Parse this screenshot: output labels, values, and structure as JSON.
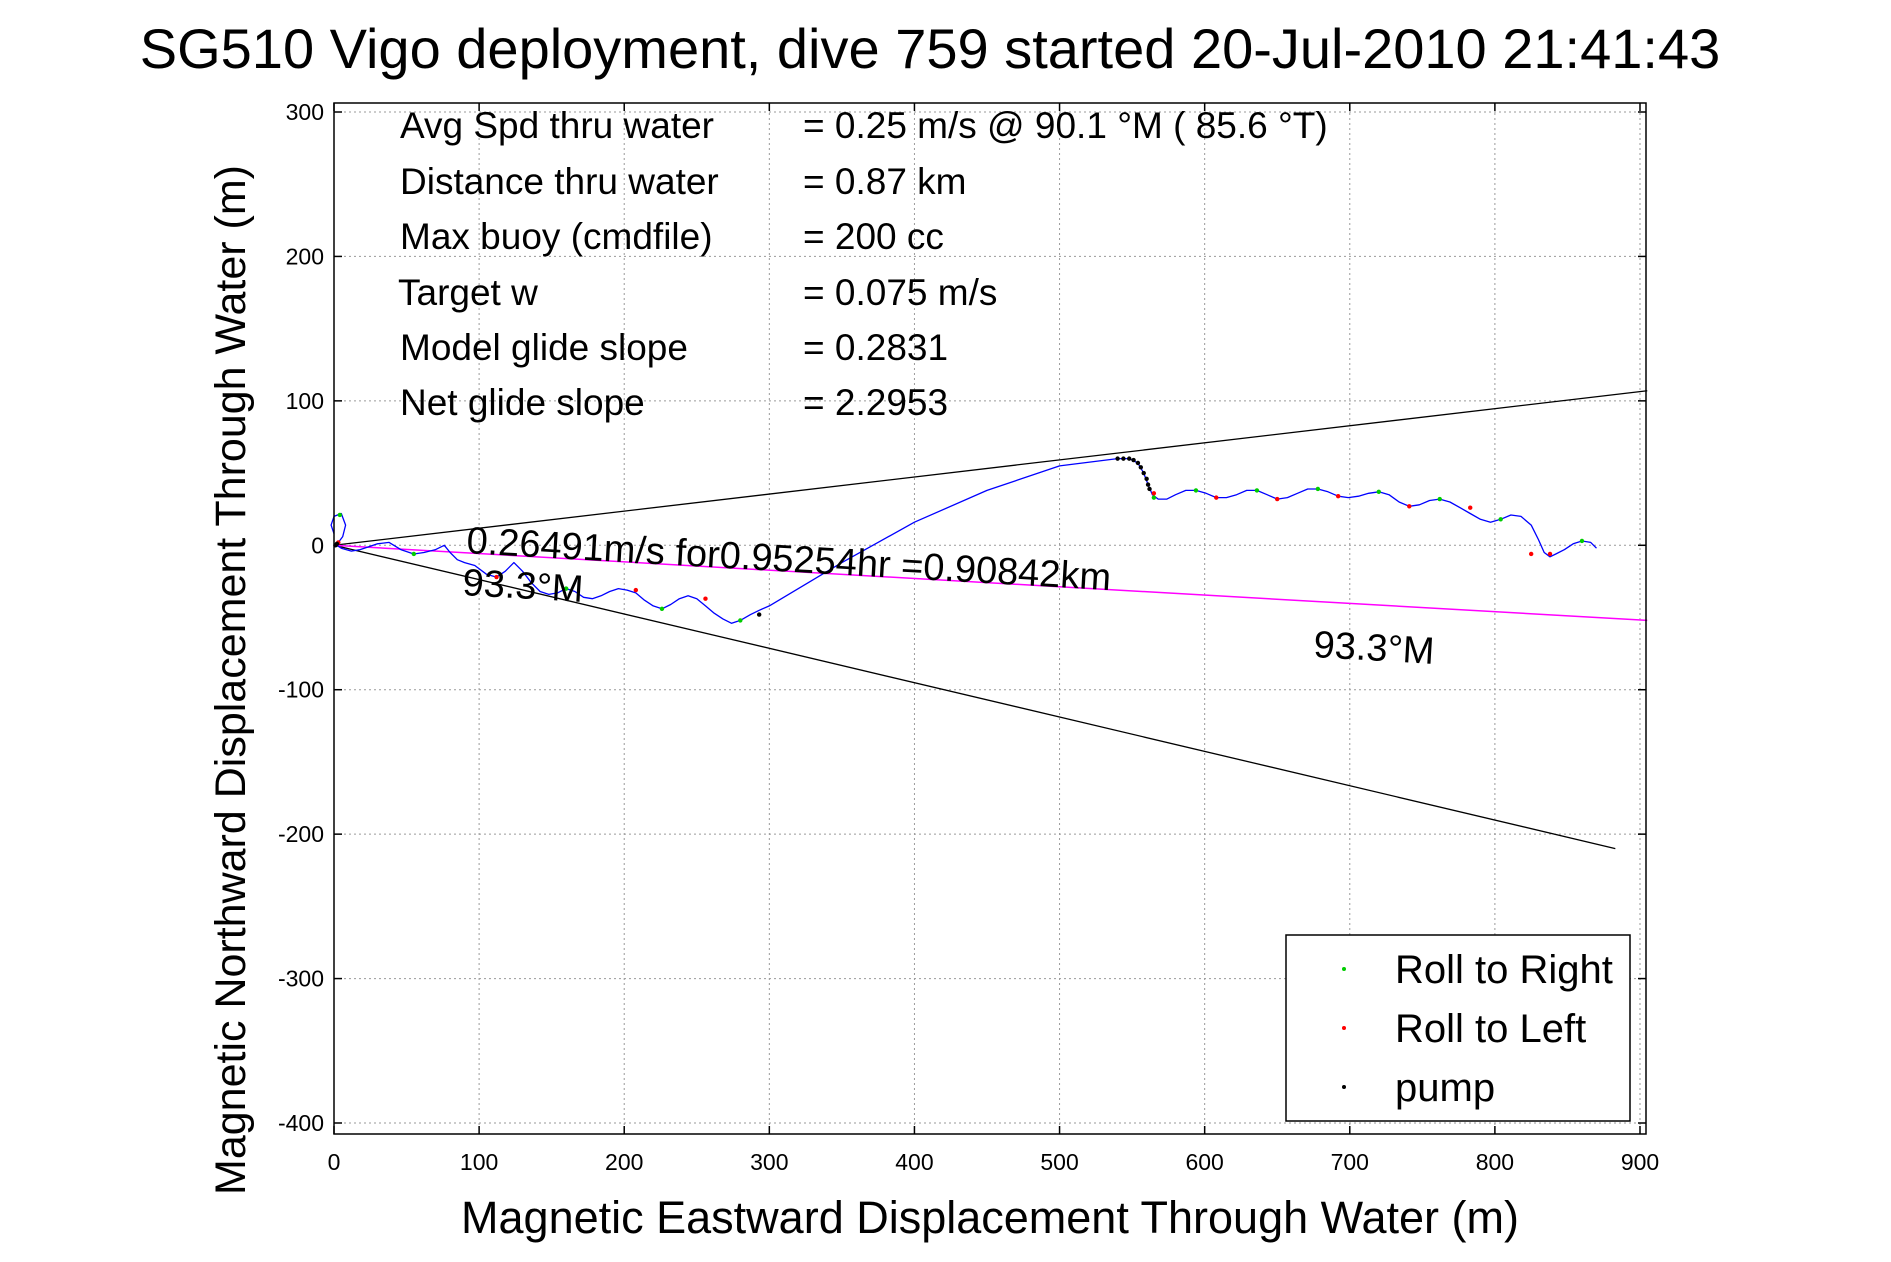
{
  "colors": {
    "track": "#0000ff",
    "reference_line": "#ff00ff",
    "envelope": "#000000",
    "roll_right": "#00cc00",
    "roll_left": "#ff0000",
    "pump": "#000000",
    "grid": "#9a9a9a"
  },
  "chart_data": {
    "type": "line",
    "title": "SG510 Vigo deployment, dive 759 started 20-Jul-2010 21:41:43",
    "xlabel": "Magnetic Eastward Displacement Through Water (m)",
    "ylabel": "Magnetic Northward Displacement Through Water (m)",
    "xlim": [
      0,
      900
    ],
    "ylim": [
      -400,
      300
    ],
    "xticks": [
      0,
      100,
      200,
      300,
      400,
      500,
      600,
      700,
      800,
      900
    ],
    "yticks": [
      300,
      200,
      100,
      0,
      -100,
      -200,
      -300,
      -400
    ],
    "grid": true,
    "legend_position": "bottom-right",
    "stats": [
      {
        "label": "Avg Spd thru water",
        "value": "=  0.25 m/s @  90.1 °M ( 85.6 °T)"
      },
      {
        "label": "Distance thru water",
        "value": "=  0.87 km"
      },
      {
        "label": "Max buoy (cmdfile)",
        "value": "= 200 cc"
      },
      {
        "label": "Target w",
        "value": "= 0.075 m/s"
      },
      {
        "label": "Model glide slope",
        "value": "= 0.2831"
      },
      {
        "label": "Net glide slope",
        "value": "= 2.2953"
      }
    ],
    "annotations": {
      "speed_text": "0.26491m/s for0.95254hr =0.90842km",
      "heading_near": "93.3°M",
      "heading_far": "93.3°M"
    },
    "legend": [
      {
        "label": "Roll to Right",
        "marker": "roll_right"
      },
      {
        "label": "Roll to Left",
        "marker": "roll_left"
      },
      {
        "label": "pump",
        "marker": "pump"
      }
    ],
    "reference_line": {
      "x": [
        0,
        905
      ],
      "y": [
        0,
        -52
      ]
    },
    "envelope_upper": {
      "x": [
        0,
        905
      ],
      "y": [
        0,
        107
      ]
    },
    "envelope_lower": {
      "x": [
        0,
        883
      ],
      "y": [
        0,
        -210
      ]
    },
    "track": {
      "x": [
        0,
        -2,
        0,
        5,
        8,
        6,
        3,
        2,
        5,
        12,
        18,
        24,
        30,
        38,
        46,
        55,
        62,
        70,
        76,
        80,
        85,
        90,
        97,
        105,
        112,
        118,
        124,
        130,
        136,
        142,
        148,
        154,
        160,
        166,
        172,
        178,
        184,
        190,
        196,
        202,
        208,
        214,
        220,
        226,
        232,
        238,
        244,
        250,
        256,
        262,
        268,
        274,
        280,
        287,
        293,
        300,
        350,
        400,
        450,
        500,
        540,
        548,
        554,
        558,
        561,
        564,
        568,
        574,
        580,
        587,
        594,
        601,
        608,
        615,
        622,
        629,
        636,
        643,
        650,
        657,
        664,
        671,
        678,
        685,
        692,
        699,
        706,
        713,
        720,
        727,
        734,
        741,
        748,
        755,
        762,
        769,
        776,
        783,
        790,
        797,
        804,
        811,
        818,
        825,
        830,
        834,
        838,
        842,
        848,
        854,
        860,
        866,
        870
      ],
      "y": [
        8,
        14,
        20,
        22,
        14,
        6,
        2,
        0,
        -2,
        -4,
        -3,
        -1,
        1,
        2,
        -3,
        -6,
        -5,
        -3,
        0,
        -5,
        -10,
        -12,
        -14,
        -20,
        -22,
        -18,
        -12,
        -18,
        -26,
        -32,
        -34,
        -33,
        -30,
        -32,
        -36,
        -37,
        -35,
        -32,
        -30,
        -31,
        -33,
        -38,
        -42,
        -44,
        -41,
        -37,
        -35,
        -37,
        -42,
        -47,
        -51,
        -54,
        -52,
        -48,
        -45,
        -42,
        -12,
        16,
        38,
        55,
        60,
        60,
        57,
        50,
        42,
        35,
        32,
        32,
        35,
        38,
        38,
        36,
        33,
        33,
        35,
        38,
        38,
        35,
        32,
        33,
        36,
        39,
        39,
        37,
        34,
        33,
        34,
        36,
        37,
        35,
        30,
        27,
        28,
        31,
        32,
        30,
        26,
        22,
        18,
        16,
        18,
        21,
        20,
        14,
        4,
        -5,
        -8,
        -6,
        -3,
        1,
        3,
        2,
        -2
      ]
    },
    "roll_right_points": [
      [
        4,
        21
      ],
      [
        55,
        -6
      ],
      [
        160,
        -30
      ],
      [
        226,
        -44
      ],
      [
        280,
        -52
      ],
      [
        565,
        33
      ],
      [
        594,
        38
      ],
      [
        636,
        38
      ],
      [
        678,
        39
      ],
      [
        720,
        37
      ],
      [
        762,
        32
      ],
      [
        804,
        18
      ],
      [
        860,
        3
      ]
    ],
    "roll_left_points": [
      [
        3,
        2
      ],
      [
        112,
        -22
      ],
      [
        208,
        -31
      ],
      [
        256,
        -37
      ],
      [
        565,
        36
      ],
      [
        608,
        33
      ],
      [
        650,
        32
      ],
      [
        692,
        34
      ],
      [
        741,
        27
      ],
      [
        783,
        26
      ],
      [
        825,
        -6
      ],
      [
        838,
        -6
      ]
    ],
    "pump_points": [
      [
        1,
        0
      ],
      [
        2,
        1
      ],
      [
        293,
        -48
      ],
      [
        540,
        60
      ],
      [
        544,
        60
      ],
      [
        548,
        60
      ],
      [
        551,
        59
      ],
      [
        554,
        57
      ],
      [
        556,
        54
      ],
      [
        558,
        50
      ],
      [
        560,
        46
      ],
      [
        561,
        42
      ],
      [
        562,
        39
      ]
    ]
  }
}
